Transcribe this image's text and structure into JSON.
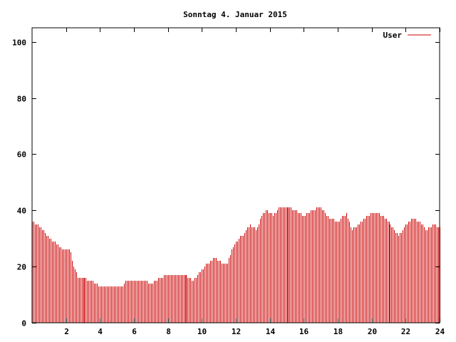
{
  "chart_data": {
    "type": "bar",
    "title": "Sonntag 4. Januar 2015",
    "xlabel": "",
    "ylabel": "",
    "xlim": [
      0,
      24
    ],
    "ylim": [
      0,
      105
    ],
    "xticks": [
      2,
      4,
      6,
      8,
      10,
      12,
      14,
      16,
      18,
      20,
      22,
      24
    ],
    "yticks": [
      0,
      20,
      40,
      60,
      80,
      100
    ],
    "grid": false,
    "legend_position": "top-right",
    "series": [
      {
        "name": "User",
        "color": "#cc0000",
        "points": [
          [
            0.0,
            36
          ],
          [
            0.5,
            34
          ],
          [
            1.0,
            30
          ],
          [
            1.5,
            28
          ],
          [
            1.8,
            26
          ],
          [
            2.2,
            26
          ],
          [
            2.4,
            20
          ],
          [
            2.7,
            16
          ],
          [
            3.0,
            16
          ],
          [
            3.4,
            15
          ],
          [
            3.8,
            14
          ],
          [
            4.0,
            13
          ],
          [
            4.5,
            13
          ],
          [
            5.0,
            13
          ],
          [
            5.3,
            13
          ],
          [
            5.5,
            15
          ],
          [
            6.0,
            15
          ],
          [
            6.5,
            15
          ],
          [
            7.0,
            14
          ],
          [
            7.5,
            16
          ],
          [
            8.0,
            17
          ],
          [
            8.5,
            17
          ],
          [
            9.0,
            17
          ],
          [
            9.5,
            15
          ],
          [
            10.0,
            19
          ],
          [
            10.5,
            22
          ],
          [
            10.8,
            23
          ],
          [
            11.2,
            21
          ],
          [
            11.5,
            21
          ],
          [
            11.8,
            27
          ],
          [
            12.0,
            29
          ],
          [
            12.5,
            32
          ],
          [
            12.8,
            35
          ],
          [
            13.2,
            33
          ],
          [
            13.5,
            38
          ],
          [
            13.8,
            40
          ],
          [
            14.2,
            38
          ],
          [
            14.5,
            41
          ],
          [
            15.0,
            41
          ],
          [
            15.5,
            40
          ],
          [
            16.0,
            38
          ],
          [
            16.5,
            40
          ],
          [
            17.0,
            41
          ],
          [
            17.5,
            37
          ],
          [
            18.0,
            36
          ],
          [
            18.5,
            39
          ],
          [
            18.8,
            33
          ],
          [
            19.2,
            35
          ],
          [
            19.5,
            37
          ],
          [
            20.0,
            39
          ],
          [
            20.4,
            39
          ],
          [
            20.8,
            37
          ],
          [
            21.2,
            34
          ],
          [
            21.6,
            31
          ],
          [
            22.0,
            35
          ],
          [
            22.4,
            37
          ],
          [
            22.8,
            36
          ],
          [
            23.2,
            33
          ],
          [
            23.6,
            35
          ],
          [
            24.0,
            34
          ]
        ]
      }
    ]
  }
}
